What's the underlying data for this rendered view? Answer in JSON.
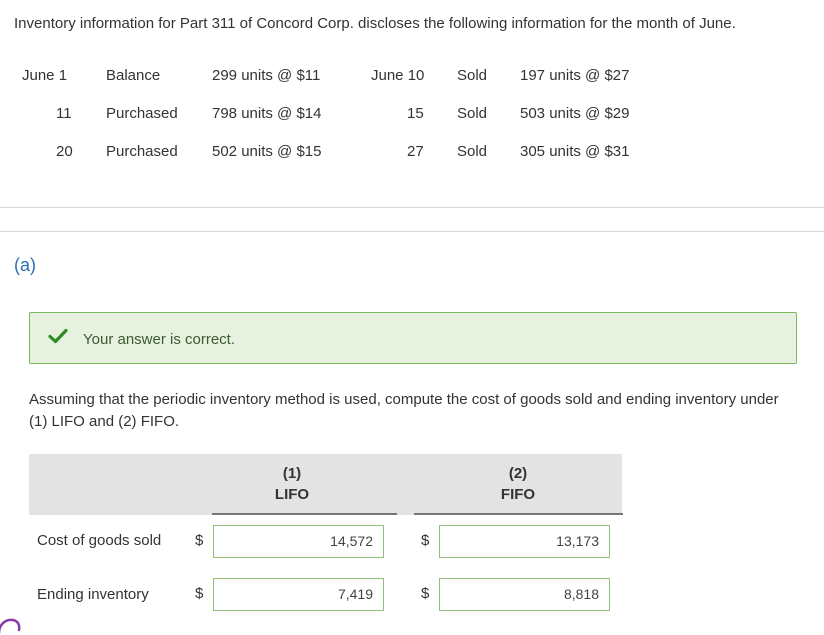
{
  "intro": "Inventory information for Part 311 of Concord Corp. discloses the following information for the month of June.",
  "purchases": [
    {
      "date": "June 1",
      "type": "Balance",
      "detail": "299 units @ $11"
    },
    {
      "date": "11",
      "type": "Purchased",
      "detail": "798 units @ $14"
    },
    {
      "date": "20",
      "type": "Purchased",
      "detail": "502 units @ $15"
    }
  ],
  "sales": [
    {
      "date": "June 10",
      "type": "Sold",
      "detail": "197 units @ $27"
    },
    {
      "date": "15",
      "type": "Sold",
      "detail": "503 units @ $29"
    },
    {
      "date": "27",
      "type": "Sold",
      "detail": "305 units @ $31"
    }
  ],
  "part_label": "(a)",
  "feedback": {
    "text": "Your answer is correct.",
    "icon": "check-icon",
    "color": "#2e8b22"
  },
  "instructions": "Assuming that the periodic inventory method is used, compute the cost of goods sold and ending inventory under (1) LIFO and (2) FIFO.",
  "table": {
    "col1_num": "(1)",
    "col1_name": "LIFO",
    "col2_num": "(2)",
    "col2_name": "FIFO",
    "currency": "$",
    "rows": [
      {
        "label": "Cost of goods sold",
        "lifo": "14,572",
        "fifo": "13,173"
      },
      {
        "label": "Ending inventory",
        "lifo": "7,419",
        "fifo": "8,818"
      }
    ]
  }
}
